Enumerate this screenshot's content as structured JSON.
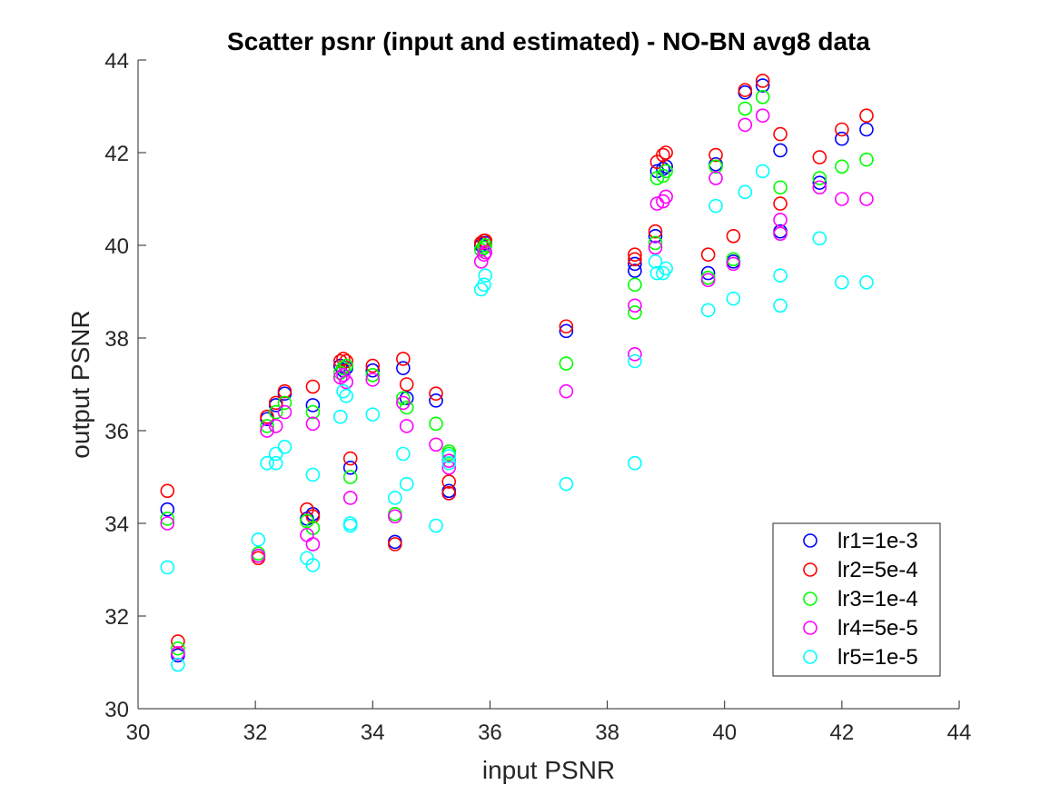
{
  "chart_data": {
    "type": "scatter",
    "title": "Scatter psnr (input and estimated) - NO-BN avg8 data",
    "xlabel": "input PSNR",
    "ylabel": "output PSNR",
    "xlim": [
      30,
      44
    ],
    "ylim": [
      30,
      44
    ],
    "xticks": [
      "30",
      "32",
      "34",
      "36",
      "38",
      "40",
      "42",
      "44"
    ],
    "yticks": [
      "30",
      "32",
      "34",
      "36",
      "38",
      "40",
      "42",
      "44"
    ],
    "grid": false,
    "legend_position": "bottom-right",
    "series": [
      {
        "name": "lr1=1e-3",
        "color": "#0000ff",
        "points": [
          [
            30.5,
            34.3
          ],
          [
            30.68,
            31.15
          ],
          [
            32.05,
            33.3
          ],
          [
            32.2,
            36.25
          ],
          [
            32.35,
            36.55
          ],
          [
            32.5,
            36.8
          ],
          [
            32.88,
            34.1
          ],
          [
            32.98,
            36.55
          ],
          [
            32.98,
            34.2
          ],
          [
            33.45,
            37.4
          ],
          [
            33.5,
            37.3
          ],
          [
            33.55,
            37.35
          ],
          [
            33.62,
            35.2
          ],
          [
            34.0,
            37.3
          ],
          [
            34.38,
            33.6
          ],
          [
            34.52,
            37.35
          ],
          [
            34.58,
            36.7
          ],
          [
            35.08,
            36.65
          ],
          [
            35.3,
            34.65
          ],
          [
            35.3,
            34.7
          ],
          [
            35.85,
            40.0
          ],
          [
            35.9,
            39.95
          ],
          [
            35.92,
            40.05
          ],
          [
            37.3,
            38.15
          ],
          [
            38.47,
            39.45
          ],
          [
            38.47,
            39.6
          ],
          [
            38.82,
            40.2
          ],
          [
            38.85,
            41.6
          ],
          [
            38.95,
            41.65
          ],
          [
            39.0,
            41.7
          ],
          [
            39.72,
            39.4
          ],
          [
            39.85,
            41.75
          ],
          [
            40.15,
            39.65
          ],
          [
            40.35,
            43.3
          ],
          [
            40.65,
            43.45
          ],
          [
            40.95,
            42.05
          ],
          [
            40.95,
            40.3
          ],
          [
            41.62,
            41.35
          ],
          [
            42.0,
            42.3
          ],
          [
            42.42,
            42.5
          ]
        ]
      },
      {
        "name": "lr2=5e-4",
        "color": "#ff0000",
        "points": [
          [
            30.5,
            34.7
          ],
          [
            30.68,
            31.45
          ],
          [
            32.05,
            33.25
          ],
          [
            32.2,
            36.3
          ],
          [
            32.35,
            36.6
          ],
          [
            32.5,
            36.85
          ],
          [
            32.88,
            34.3
          ],
          [
            32.98,
            36.95
          ],
          [
            32.98,
            34.15
          ],
          [
            33.45,
            37.5
          ],
          [
            33.5,
            37.55
          ],
          [
            33.55,
            37.5
          ],
          [
            33.62,
            35.4
          ],
          [
            34.0,
            37.4
          ],
          [
            34.38,
            33.55
          ],
          [
            34.52,
            37.55
          ],
          [
            34.58,
            37.0
          ],
          [
            35.08,
            36.8
          ],
          [
            35.3,
            34.9
          ],
          [
            35.3,
            34.65
          ],
          [
            35.85,
            40.05
          ],
          [
            35.9,
            40.1
          ],
          [
            35.92,
            40.1
          ],
          [
            37.3,
            38.25
          ],
          [
            38.47,
            39.8
          ],
          [
            38.47,
            39.7
          ],
          [
            38.82,
            40.3
          ],
          [
            38.85,
            41.8
          ],
          [
            38.95,
            41.95
          ],
          [
            39.0,
            42.0
          ],
          [
            39.72,
            39.8
          ],
          [
            39.85,
            41.95
          ],
          [
            40.15,
            40.2
          ],
          [
            40.35,
            43.35
          ],
          [
            40.65,
            43.55
          ],
          [
            40.95,
            42.4
          ],
          [
            40.95,
            40.9
          ],
          [
            41.62,
            41.9
          ],
          [
            42.0,
            42.5
          ],
          [
            42.42,
            42.8
          ]
        ]
      },
      {
        "name": "lr3=1e-4",
        "color": "#00ff00",
        "points": [
          [
            30.5,
            34.1
          ],
          [
            30.68,
            31.3
          ],
          [
            32.05,
            33.35
          ],
          [
            32.2,
            36.1
          ],
          [
            32.35,
            36.4
          ],
          [
            32.5,
            36.6
          ],
          [
            32.88,
            34.05
          ],
          [
            32.98,
            36.4
          ],
          [
            32.98,
            33.9
          ],
          [
            33.45,
            37.25
          ],
          [
            33.5,
            37.35
          ],
          [
            33.55,
            37.4
          ],
          [
            33.62,
            35.0
          ],
          [
            34.0,
            37.2
          ],
          [
            34.38,
            34.2
          ],
          [
            34.52,
            36.7
          ],
          [
            34.58,
            36.5
          ],
          [
            35.08,
            36.15
          ],
          [
            35.3,
            35.5
          ],
          [
            35.3,
            35.55
          ],
          [
            35.85,
            39.9
          ],
          [
            35.9,
            39.95
          ],
          [
            35.92,
            40.0
          ],
          [
            37.3,
            37.45
          ],
          [
            38.47,
            38.55
          ],
          [
            38.47,
            39.15
          ],
          [
            38.82,
            40.05
          ],
          [
            38.85,
            41.45
          ],
          [
            38.95,
            41.5
          ],
          [
            39.0,
            41.6
          ],
          [
            39.72,
            39.3
          ],
          [
            39.85,
            41.7
          ],
          [
            40.15,
            39.7
          ],
          [
            40.35,
            42.95
          ],
          [
            40.65,
            43.2
          ],
          [
            40.95,
            41.25
          ],
          [
            40.95,
            40.25
          ],
          [
            41.62,
            41.45
          ],
          [
            42.0,
            41.7
          ],
          [
            42.42,
            41.85
          ]
        ]
      },
      {
        "name": "lr4=5e-5",
        "color": "#ff00ff",
        "points": [
          [
            30.5,
            34.0
          ],
          [
            30.68,
            31.2
          ],
          [
            32.05,
            33.3
          ],
          [
            32.2,
            36.0
          ],
          [
            32.35,
            36.1
          ],
          [
            32.5,
            36.4
          ],
          [
            32.88,
            33.75
          ],
          [
            32.98,
            36.15
          ],
          [
            32.98,
            33.55
          ],
          [
            33.45,
            37.15
          ],
          [
            33.5,
            37.2
          ],
          [
            33.55,
            37.05
          ],
          [
            33.62,
            34.55
          ],
          [
            34.0,
            37.1
          ],
          [
            34.38,
            34.15
          ],
          [
            34.52,
            36.6
          ],
          [
            34.58,
            36.1
          ],
          [
            35.08,
            35.7
          ],
          [
            35.3,
            35.2
          ],
          [
            35.3,
            35.35
          ],
          [
            35.85,
            39.65
          ],
          [
            35.9,
            39.8
          ],
          [
            35.92,
            39.85
          ],
          [
            37.3,
            36.85
          ],
          [
            38.47,
            38.7
          ],
          [
            38.47,
            37.65
          ],
          [
            38.82,
            39.95
          ],
          [
            38.85,
            40.9
          ],
          [
            38.95,
            40.95
          ],
          [
            39.0,
            41.05
          ],
          [
            39.72,
            39.25
          ],
          [
            39.85,
            41.45
          ],
          [
            40.15,
            39.6
          ],
          [
            40.35,
            42.6
          ],
          [
            40.65,
            42.8
          ],
          [
            40.95,
            40.55
          ],
          [
            40.95,
            40.25
          ],
          [
            41.62,
            41.25
          ],
          [
            42.0,
            41.0
          ],
          [
            42.42,
            41.0
          ]
        ]
      },
      {
        "name": "lr5=1e-5",
        "color": "#00ffff",
        "points": [
          [
            30.5,
            33.05
          ],
          [
            30.68,
            30.95
          ],
          [
            32.05,
            33.65
          ],
          [
            32.2,
            35.3
          ],
          [
            32.35,
            35.3
          ],
          [
            32.35,
            35.5
          ],
          [
            32.5,
            35.65
          ],
          [
            32.88,
            33.25
          ],
          [
            32.98,
            35.05
          ],
          [
            32.98,
            33.1
          ],
          [
            33.45,
            36.3
          ],
          [
            33.5,
            36.85
          ],
          [
            33.55,
            36.75
          ],
          [
            33.62,
            34.0
          ],
          [
            33.62,
            33.95
          ],
          [
            34.0,
            36.35
          ],
          [
            34.38,
            34.55
          ],
          [
            34.52,
            35.5
          ],
          [
            34.58,
            34.85
          ],
          [
            35.08,
            33.95
          ],
          [
            35.3,
            35.3
          ],
          [
            35.3,
            35.45
          ],
          [
            35.85,
            39.05
          ],
          [
            35.9,
            39.15
          ],
          [
            35.92,
            39.35
          ],
          [
            37.3,
            34.85
          ],
          [
            38.47,
            35.3
          ],
          [
            38.47,
            37.5
          ],
          [
            38.82,
            39.65
          ],
          [
            38.85,
            39.4
          ],
          [
            38.95,
            39.4
          ],
          [
            39.0,
            39.5
          ],
          [
            39.72,
            38.6
          ],
          [
            39.85,
            40.85
          ],
          [
            40.15,
            38.85
          ],
          [
            40.35,
            41.15
          ],
          [
            40.65,
            41.6
          ],
          [
            40.95,
            39.35
          ],
          [
            40.95,
            38.7
          ],
          [
            41.62,
            40.15
          ],
          [
            42.0,
            39.2
          ],
          [
            42.42,
            39.2
          ]
        ]
      }
    ]
  }
}
